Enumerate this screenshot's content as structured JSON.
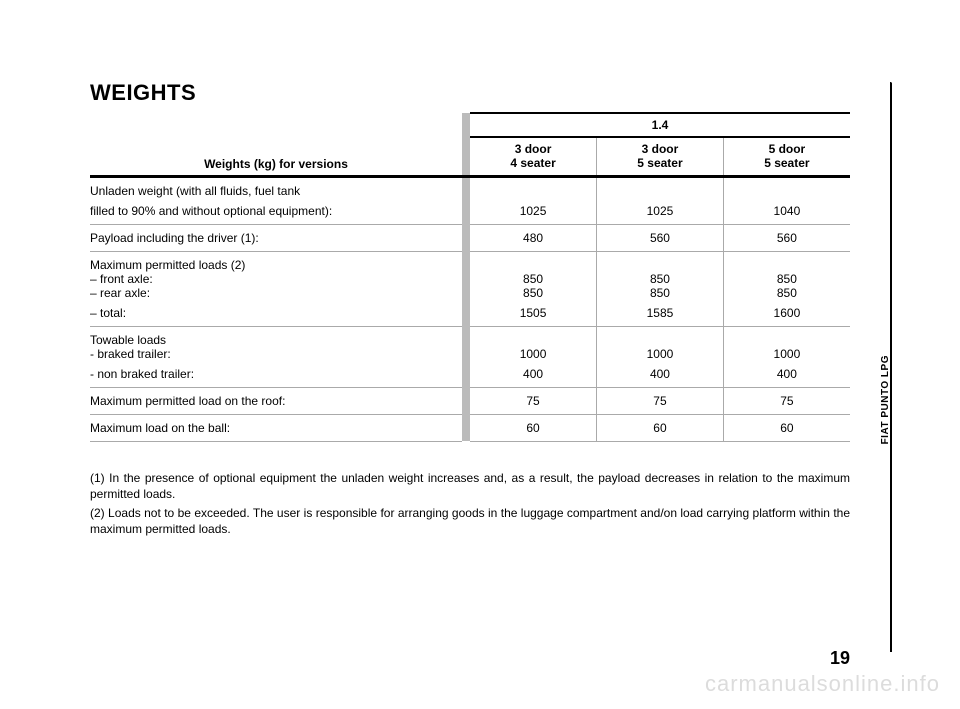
{
  "title": "WEIGHTS",
  "header": {
    "label": "Weights (kg) for versions",
    "group": "1.4",
    "cols": [
      {
        "l1": "3 door",
        "l2": "4 seater"
      },
      {
        "l1": "3 door",
        "l2": "5 seater"
      },
      {
        "l1": "5 door",
        "l2": "5 seater"
      }
    ]
  },
  "rows": [
    {
      "lines": [
        "Unladen weight (with all fluids, fuel tank",
        "filled to 90% and without optional equipment):"
      ],
      "vals": [
        [
          "",
          "",
          ""
        ],
        [
          "1025",
          "1025",
          "1040"
        ]
      ]
    },
    {
      "lines": [
        "Payload including the driver (1):"
      ],
      "vals": [
        [
          "480",
          "560",
          "560"
        ]
      ]
    },
    {
      "lines": [
        "Maximum permitted loads (2)",
        "– front axle:",
        "– rear axle:",
        "– total:"
      ],
      "vals": [
        [
          "",
          "",
          ""
        ],
        [
          "850",
          "850",
          "850"
        ],
        [
          "850",
          "850",
          "850"
        ],
        [
          "1505",
          "1585",
          "1600"
        ]
      ]
    },
    {
      "lines": [
        "Towable loads",
        "- braked trailer:",
        " - non braked trailer:"
      ],
      "vals": [
        [
          "",
          "",
          ""
        ],
        [
          "1000",
          "1000",
          "1000"
        ],
        [
          "400",
          "400",
          "400"
        ]
      ]
    },
    {
      "lines": [
        "Maximum permitted load on the roof:"
      ],
      "vals": [
        [
          "75",
          "75",
          "75"
        ]
      ]
    },
    {
      "lines": [
        "Maximum load on the ball:"
      ],
      "vals": [
        [
          "60",
          "60",
          "60"
        ]
      ]
    }
  ],
  "footnotes": [
    "(1) In the presence of optional equipment the unladen weight increases and, as a result, the payload decreases in relation to the maximum permitted loads.",
    "(2) Loads not to be exceeded. The user is responsible for arranging goods in the luggage compartment and/on load carrying platform within the maximum permitted loads."
  ],
  "page_number": "19",
  "side_label": "FIAT PUNTO LPG",
  "watermark": "carmanualsonline.info"
}
